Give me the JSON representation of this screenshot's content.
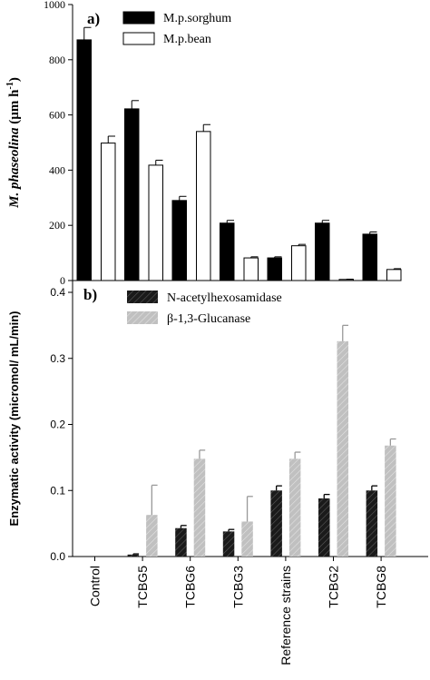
{
  "chart_data": [
    {
      "type": "bar",
      "panel_label": "a)",
      "ylabel_italic": "M. phaseolina",
      "ylabel_rest": " (µm h",
      "ylabel_sup": "-1",
      "ylabel_close": ")",
      "ylim": [
        0,
        1000
      ],
      "yticks": [
        0,
        200,
        400,
        600,
        800,
        1000
      ],
      "legend_position": "top-center",
      "series": [
        {
          "name": "M.p.sorghum",
          "color": "#000000",
          "values": [
            872,
            622,
            290,
            208,
            82,
            208,
            168
          ],
          "errors": [
            45,
            30,
            15,
            10,
            4,
            10,
            8
          ]
        },
        {
          "name": "M.p.bean",
          "color": "#ffffff",
          "values": [
            498,
            418,
            540,
            82,
            126,
            4,
            40
          ],
          "errors": [
            25,
            18,
            25,
            4,
            5,
            1,
            3
          ]
        }
      ]
    },
    {
      "type": "bar",
      "panel_label": "b)",
      "ylabel": "Enzymatic activity (micromol/ mL/min)",
      "ylim": [
        0,
        0.4
      ],
      "yticks": [
        "0.0",
        "0.1",
        "0.2",
        "0.3",
        "0.4"
      ],
      "categories": [
        "Control",
        "TCBG5",
        "TCBG6",
        "TCBG3",
        "Reference strains",
        "TCBG2",
        "TCBG8"
      ],
      "legend_position": "top-center",
      "series": [
        {
          "name": "N-acetylhexosamidase",
          "color": "#1a1a1a",
          "values": [
            0,
            0.003,
            0.043,
            0.038,
            0.1,
            0.088,
            0.1
          ],
          "errors": [
            0,
            0.001,
            0.004,
            0.003,
            0.007,
            0.006,
            0.007
          ]
        },
        {
          "name": "β-1,3-Glucanase",
          "color": "#c0c0c0",
          "values": [
            0,
            0.063,
            0.148,
            0.053,
            0.148,
            0.326,
            0.168
          ],
          "errors": [
            0,
            0.045,
            0.013,
            0.038,
            0.01,
            0.024,
            0.01
          ]
        }
      ]
    }
  ]
}
